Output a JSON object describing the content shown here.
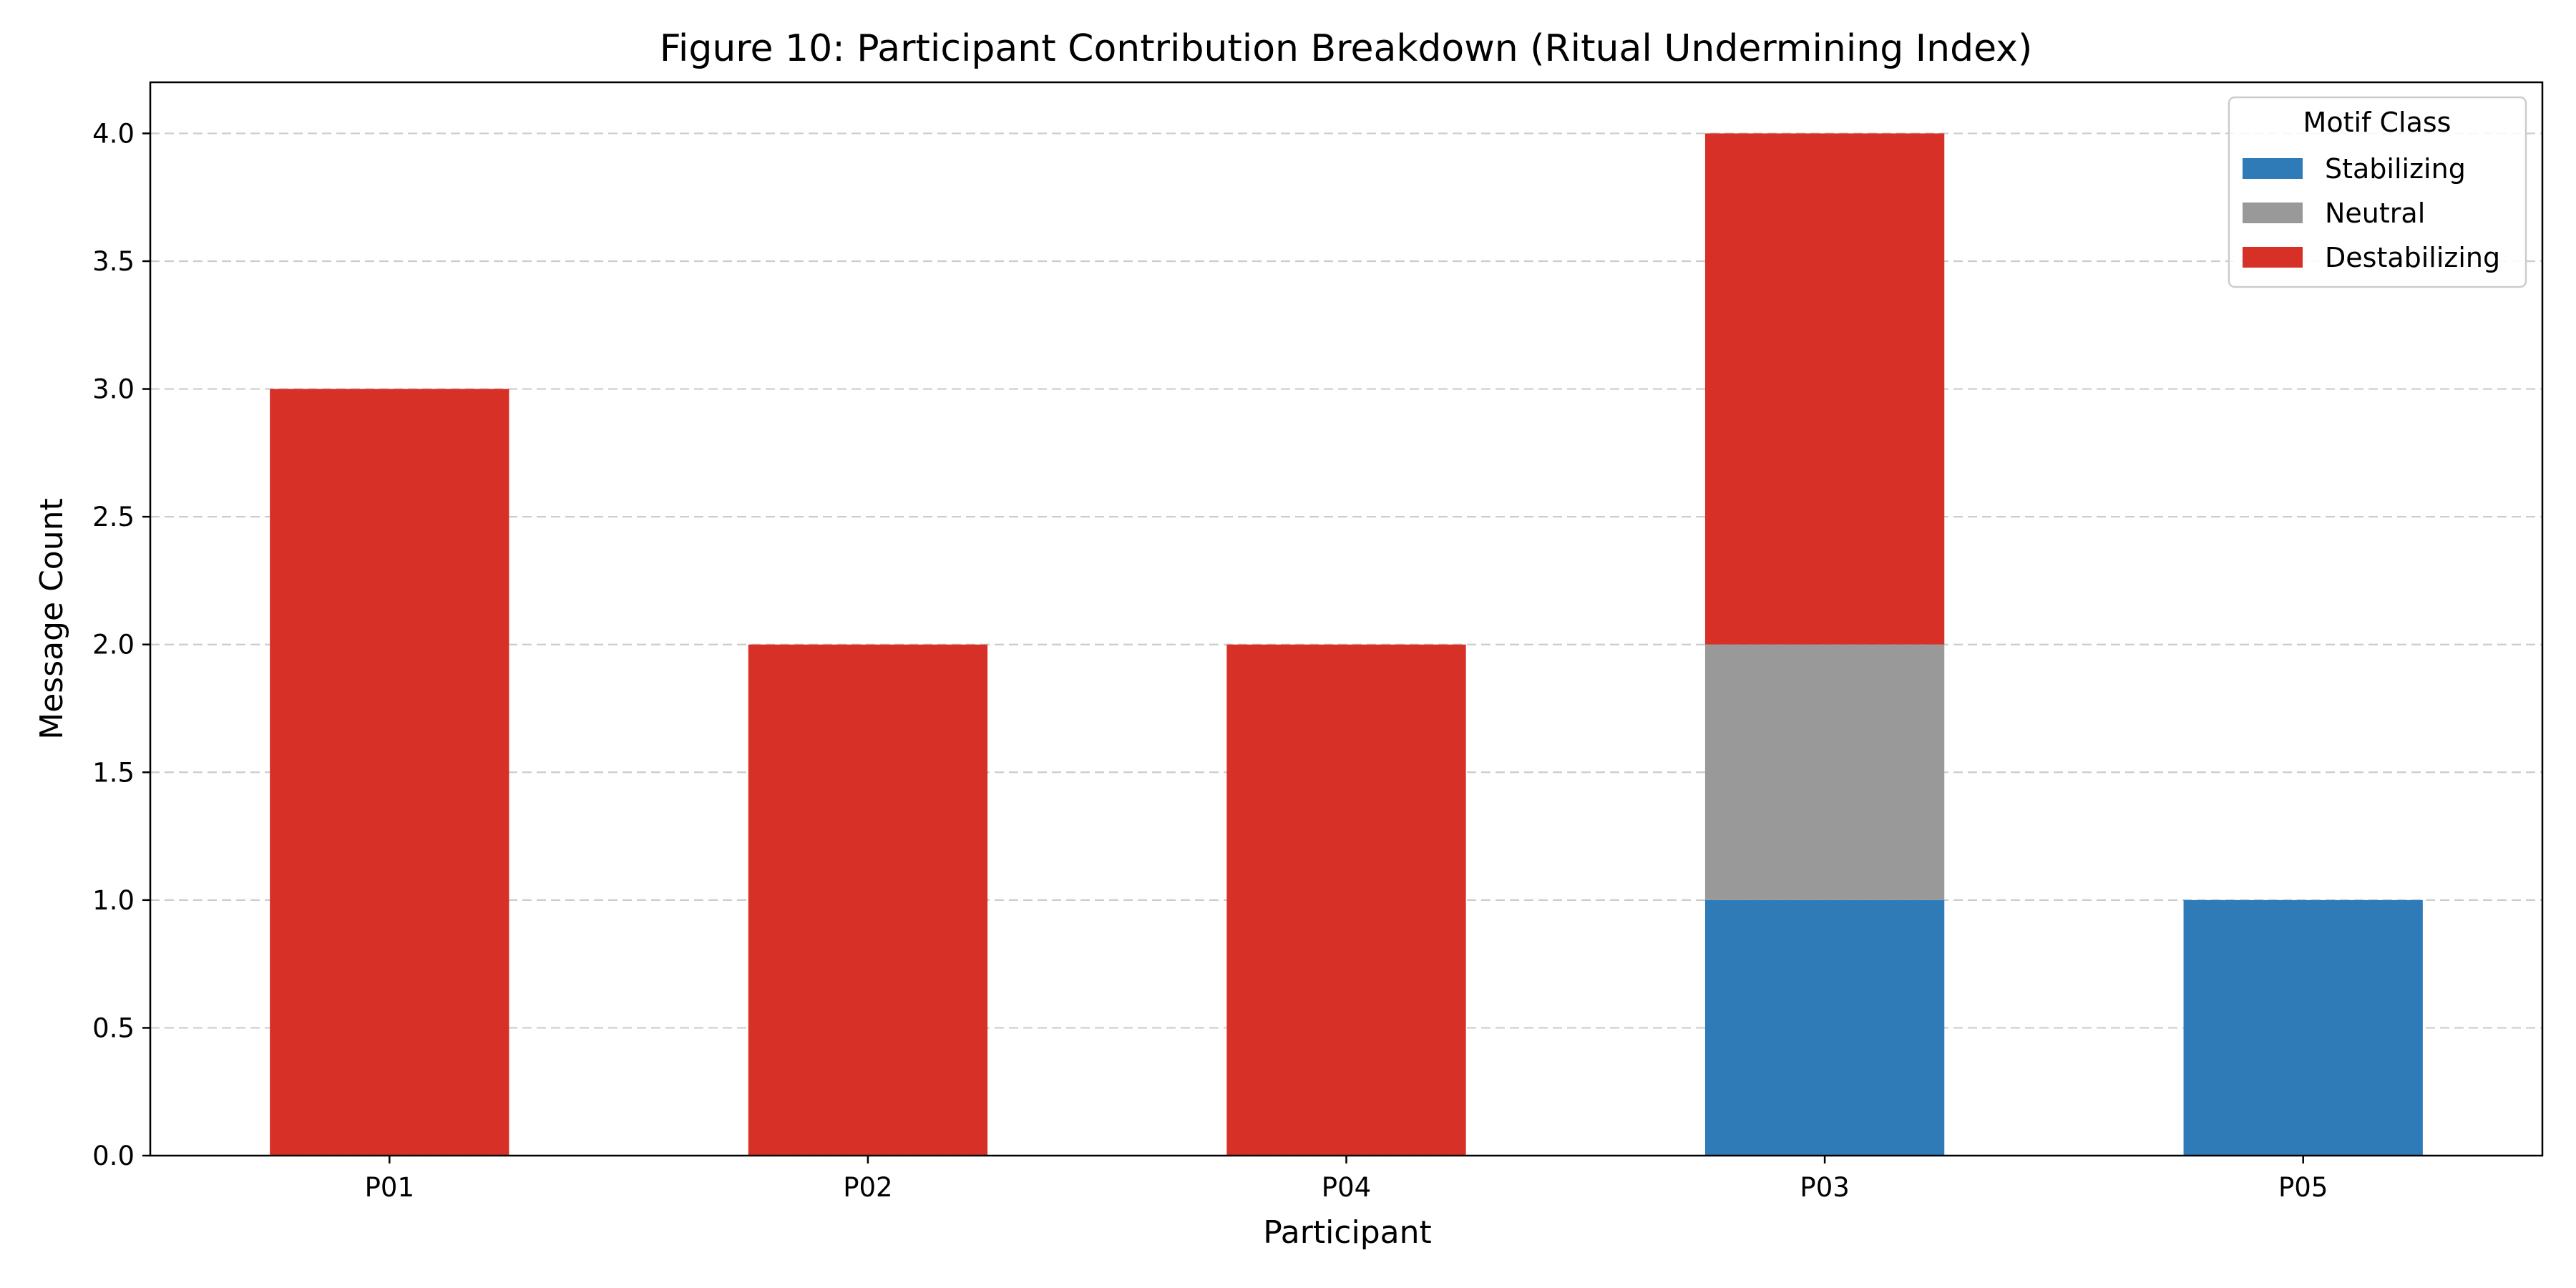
{
  "chart_data": {
    "type": "bar",
    "stacked": true,
    "title": "Figure 10: Participant Contribution Breakdown (Ritual Undermining Index)",
    "xlabel": "Participant",
    "ylabel": "Message Count",
    "categories": [
      "P01",
      "P02",
      "P04",
      "P03",
      "P05"
    ],
    "series": [
      {
        "name": "Stabilizing",
        "color": "#2e7bb8",
        "values": [
          0,
          0,
          0,
          1,
          1
        ]
      },
      {
        "name": "Neutral",
        "color": "#999999",
        "values": [
          0,
          0,
          0,
          1,
          0
        ]
      },
      {
        "name": "Destabilizing",
        "color": "#d73027",
        "values": [
          3,
          2,
          2,
          2,
          0
        ]
      }
    ],
    "ylim": [
      0,
      4.2
    ],
    "yticks": [
      "0.0",
      "0.5",
      "1.0",
      "1.5",
      "2.0",
      "2.5",
      "3.0",
      "3.5",
      "4.0"
    ],
    "grid": "y-dashed",
    "legend": {
      "title": "Motif Class",
      "placement": "top-right"
    }
  }
}
